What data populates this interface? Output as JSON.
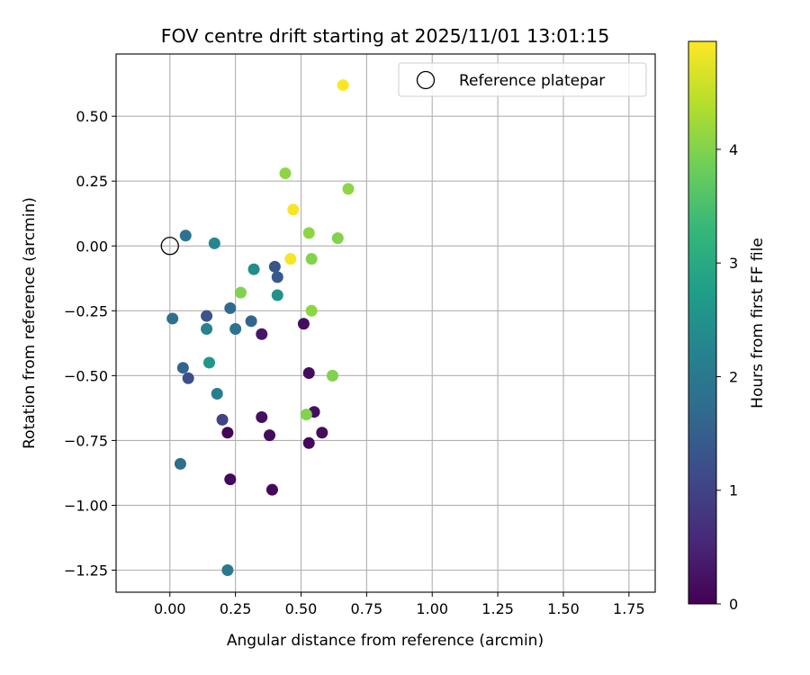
{
  "chart_data": {
    "type": "scatter",
    "title": "FOV centre drift starting at 2025/11/01 13:01:15",
    "xlabel": "Angular distance from reference (arcmin)",
    "ylabel": "Rotation from reference (arcmin)",
    "xlim": [
      -0.205,
      1.85
    ],
    "ylim": [
      -1.335,
      0.74
    ],
    "xticks": [
      0.0,
      0.25,
      0.5,
      0.75,
      1.0,
      1.25,
      1.5,
      1.75
    ],
    "xtick_labels": [
      "0.00",
      "0.25",
      "0.50",
      "0.75",
      "1.00",
      "1.25",
      "1.50",
      "1.75"
    ],
    "yticks": [
      0.5,
      0.25,
      0.0,
      -0.25,
      -0.5,
      -0.75,
      -1.0,
      -1.25
    ],
    "ytick_labels": [
      "0.50",
      "0.25",
      "0.00",
      "−0.25",
      "−0.50",
      "−0.75",
      "−1.00",
      "−1.25"
    ],
    "grid": true,
    "legend": {
      "label": "Reference platepar",
      "location": "upper right"
    },
    "reference_point": {
      "x": 0.0,
      "y": 0.0
    },
    "colorbar": {
      "label": "Hours from first FF file",
      "colormap": "viridis",
      "range": [
        0,
        4.95
      ],
      "ticks": [
        0,
        1,
        2,
        3,
        4
      ],
      "tick_labels": [
        "0",
        "1",
        "2",
        "3",
        "4"
      ],
      "colors": [
        "#440154",
        "#482878",
        "#3e4989",
        "#31688e",
        "#26828e",
        "#1f9e89",
        "#35b779",
        "#6ece58",
        "#b5de2b",
        "#fde725"
      ]
    },
    "points": [
      {
        "x": 0.22,
        "y": -0.72,
        "hours": 0.05
      },
      {
        "x": 0.23,
        "y": -0.9,
        "hours": 0.1
      },
      {
        "x": 0.39,
        "y": -0.94,
        "hours": 0.1
      },
      {
        "x": 0.38,
        "y": -0.73,
        "hours": 0.15
      },
      {
        "x": 0.35,
        "y": -0.66,
        "hours": 0.2
      },
      {
        "x": 0.53,
        "y": -0.76,
        "hours": 0.1
      },
      {
        "x": 0.58,
        "y": -0.72,
        "hours": 0.15
      },
      {
        "x": 0.55,
        "y": -0.64,
        "hours": 0.2
      },
      {
        "x": 0.53,
        "y": -0.49,
        "hours": 0.15
      },
      {
        "x": 0.51,
        "y": -0.3,
        "hours": 0.2
      },
      {
        "x": 0.35,
        "y": -0.34,
        "hours": 0.3
      },
      {
        "x": 0.2,
        "y": -0.67,
        "hours": 1.0
      },
      {
        "x": 0.07,
        "y": -0.51,
        "hours": 1.2
      },
      {
        "x": 0.14,
        "y": -0.27,
        "hours": 1.3
      },
      {
        "x": 0.4,
        "y": -0.08,
        "hours": 1.3
      },
      {
        "x": 0.41,
        "y": -0.12,
        "hours": 1.4
      },
      {
        "x": 0.05,
        "y": -0.47,
        "hours": 1.6
      },
      {
        "x": 0.31,
        "y": -0.29,
        "hours": 1.6
      },
      {
        "x": 0.23,
        "y": -0.24,
        "hours": 1.7
      },
      {
        "x": 0.01,
        "y": -0.28,
        "hours": 1.8
      },
      {
        "x": 0.04,
        "y": -0.84,
        "hours": 1.8
      },
      {
        "x": 0.06,
        "y": 0.04,
        "hours": 1.9
      },
      {
        "x": 0.25,
        "y": -0.32,
        "hours": 1.9
      },
      {
        "x": 0.22,
        "y": -1.25,
        "hours": 2.0
      },
      {
        "x": 0.18,
        "y": -0.57,
        "hours": 2.1
      },
      {
        "x": 0.14,
        "y": -0.32,
        "hours": 2.2
      },
      {
        "x": 0.17,
        "y": 0.01,
        "hours": 2.3
      },
      {
        "x": 0.32,
        "y": -0.09,
        "hours": 2.4
      },
      {
        "x": 0.41,
        "y": -0.19,
        "hours": 2.5
      },
      {
        "x": 0.15,
        "y": -0.45,
        "hours": 2.6
      },
      {
        "x": 0.27,
        "y": -0.18,
        "hours": 4.0
      },
      {
        "x": 0.52,
        "y": -0.65,
        "hours": 4.0
      },
      {
        "x": 0.62,
        "y": -0.5,
        "hours": 4.0
      },
      {
        "x": 0.54,
        "y": -0.25,
        "hours": 4.1
      },
      {
        "x": 0.54,
        "y": -0.05,
        "hours": 4.0
      },
      {
        "x": 0.53,
        "y": 0.05,
        "hours": 4.1
      },
      {
        "x": 0.64,
        "y": 0.03,
        "hours": 4.0
      },
      {
        "x": 0.44,
        "y": 0.28,
        "hours": 4.1
      },
      {
        "x": 0.68,
        "y": 0.22,
        "hours": 4.1
      },
      {
        "x": 0.46,
        "y": -0.05,
        "hours": 4.9
      },
      {
        "x": 0.47,
        "y": 0.14,
        "hours": 4.9
      },
      {
        "x": 0.66,
        "y": 0.62,
        "hours": 4.95
      }
    ]
  }
}
